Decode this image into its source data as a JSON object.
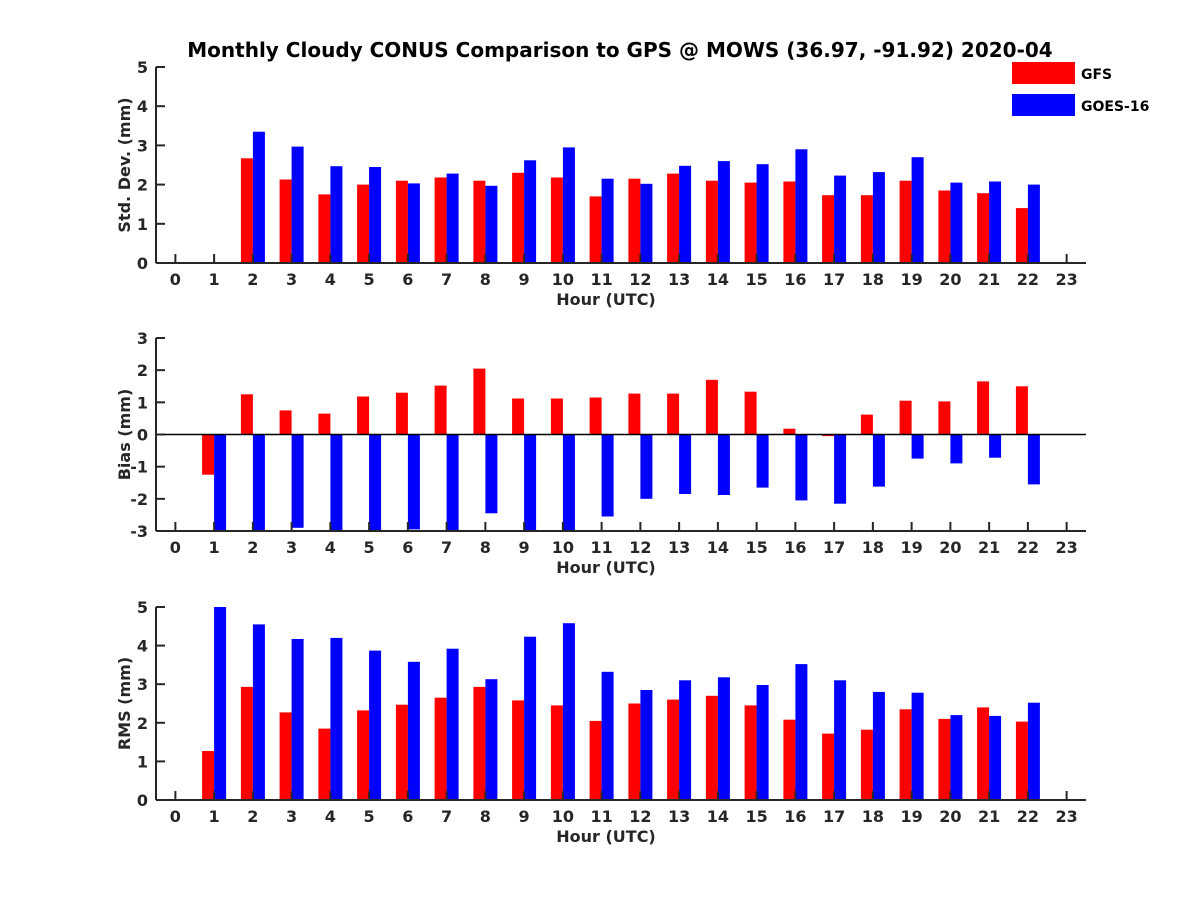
{
  "figure": {
    "title": "Monthly Cloudy CONUS Comparison to GPS @ MOWS (36.97, -91.92) 2020-04"
  },
  "legend": {
    "placement": "top-right",
    "items": [
      {
        "label": "GFS",
        "color": "#ff0000"
      },
      {
        "label": "GOES-16",
        "color": "#0000ff"
      }
    ]
  },
  "chart_data": [
    {
      "type": "bar",
      "xlabel": "Hour (UTC)",
      "ylabel": "Std. Dev. (mm)",
      "ylim": [
        0,
        5
      ],
      "xlim": [
        -0.5,
        23.5
      ],
      "yticks": [
        0,
        1,
        2,
        3,
        4,
        5
      ],
      "categories": [
        0,
        1,
        2,
        3,
        4,
        5,
        6,
        7,
        8,
        9,
        10,
        11,
        12,
        13,
        14,
        15,
        16,
        17,
        18,
        19,
        20,
        21,
        22,
        23
      ],
      "series": [
        {
          "name": "GFS",
          "color": "#ff0000",
          "values": [
            null,
            null,
            2.67,
            2.13,
            1.75,
            2.0,
            2.1,
            2.18,
            2.1,
            2.3,
            2.18,
            1.7,
            2.15,
            2.28,
            2.1,
            2.05,
            2.08,
            1.73,
            1.73,
            2.1,
            1.85,
            1.78,
            1.4,
            null
          ]
        },
        {
          "name": "GOES-16",
          "color": "#0000ff",
          "values": [
            null,
            null,
            3.35,
            2.97,
            2.47,
            2.45,
            2.03,
            2.28,
            1.97,
            2.62,
            2.95,
            2.15,
            2.02,
            2.48,
            2.6,
            2.52,
            2.9,
            2.23,
            2.32,
            2.7,
            2.05,
            2.08,
            2.0,
            null
          ]
        }
      ]
    },
    {
      "type": "bar",
      "xlabel": "Hour (UTC)",
      "ylabel": "Bias (mm)",
      "ylim": [
        -3,
        3
      ],
      "xlim": [
        -0.5,
        23.5
      ],
      "yticks": [
        -3,
        -2,
        -1,
        0,
        1,
        2,
        3
      ],
      "categories": [
        0,
        1,
        2,
        3,
        4,
        5,
        6,
        7,
        8,
        9,
        10,
        11,
        12,
        13,
        14,
        15,
        16,
        17,
        18,
        19,
        20,
        21,
        22,
        23
      ],
      "series": [
        {
          "name": "GFS",
          "color": "#ff0000",
          "values": [
            null,
            -1.25,
            1.25,
            0.75,
            0.65,
            1.18,
            1.3,
            1.52,
            2.05,
            1.12,
            1.12,
            1.15,
            1.27,
            1.27,
            1.7,
            1.33,
            0.18,
            -0.05,
            0.62,
            1.05,
            1.03,
            1.65,
            1.5,
            null
          ]
        },
        {
          "name": "GOES-16",
          "color": "#0000ff",
          "values": [
            null,
            -3.0,
            -3.0,
            -2.9,
            -3.0,
            -3.0,
            -2.95,
            -3.0,
            -2.45,
            -3.0,
            -3.0,
            -2.55,
            -2.0,
            -1.85,
            -1.88,
            -1.65,
            -2.05,
            -2.15,
            -1.62,
            -0.75,
            -0.9,
            -0.72,
            -1.55,
            null
          ]
        }
      ]
    },
    {
      "type": "bar",
      "xlabel": "Hour (UTC)",
      "ylabel": "RMS (mm)",
      "ylim": [
        0,
        5
      ],
      "xlim": [
        -0.5,
        23.5
      ],
      "yticks": [
        0,
        1,
        2,
        3,
        4,
        5
      ],
      "categories": [
        0,
        1,
        2,
        3,
        4,
        5,
        6,
        7,
        8,
        9,
        10,
        11,
        12,
        13,
        14,
        15,
        16,
        17,
        18,
        19,
        20,
        21,
        22,
        23
      ],
      "series": [
        {
          "name": "GFS",
          "color": "#ff0000",
          "values": [
            null,
            1.27,
            2.93,
            2.27,
            1.85,
            2.32,
            2.47,
            2.65,
            2.93,
            2.58,
            2.45,
            2.05,
            2.5,
            2.6,
            2.7,
            2.45,
            2.08,
            1.72,
            1.82,
            2.35,
            2.1,
            2.4,
            2.03,
            null
          ]
        },
        {
          "name": "GOES-16",
          "color": "#0000ff",
          "values": [
            null,
            5.0,
            4.55,
            4.17,
            4.2,
            3.87,
            3.58,
            3.92,
            3.13,
            4.23,
            4.58,
            3.32,
            2.85,
            3.1,
            3.18,
            2.98,
            3.52,
            3.1,
            2.8,
            2.78,
            2.2,
            2.18,
            2.52,
            null
          ]
        }
      ]
    }
  ]
}
